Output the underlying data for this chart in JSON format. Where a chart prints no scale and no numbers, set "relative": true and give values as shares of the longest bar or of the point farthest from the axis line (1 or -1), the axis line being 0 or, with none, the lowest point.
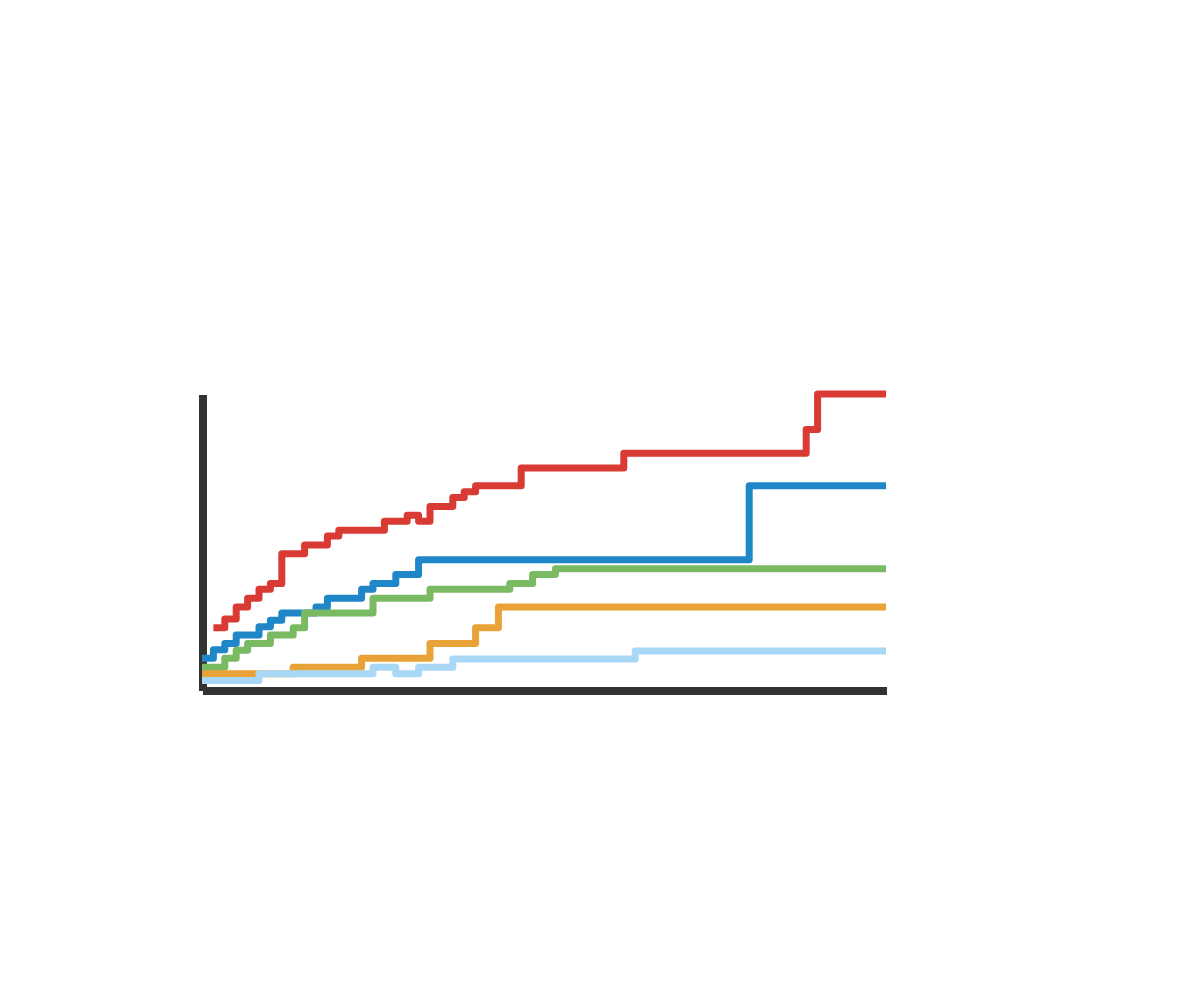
{
  "chart_data": {
    "type": "step",
    "relative": true,
    "line_style": "solid",
    "categories": [
      null,
      null,
      null,
      null,
      null,
      null,
      null,
      null,
      null,
      null,
      null,
      null,
      null,
      null,
      null,
      null,
      null,
      null,
      null,
      null,
      null,
      null,
      null,
      null,
      null,
      null,
      null,
      null,
      null,
      null,
      null,
      null,
      null,
      null,
      null,
      null,
      null,
      null,
      null,
      null,
      null,
      null,
      null,
      null,
      null,
      null,
      null,
      null,
      null,
      null,
      null,
      null,
      null,
      null,
      null,
      null,
      null,
      null,
      null,
      null,
      null
    ],
    "series": [
      {
        "color": "#d93a33",
        "values": [
          null,
          0.21,
          0.24,
          0.28,
          0.31,
          0.34,
          0.36,
          0.46,
          0.46,
          0.49,
          0.49,
          0.52,
          0.54,
          0.54,
          0.54,
          0.54,
          0.57,
          0.57,
          0.59,
          0.57,
          0.62,
          0.62,
          0.65,
          0.67,
          0.69,
          0.69,
          0.69,
          0.69,
          0.75,
          0.75,
          0.75,
          0.75,
          0.75,
          0.75,
          0.75,
          0.75,
          0.75,
          0.8,
          0.8,
          0.8,
          0.8,
          0.8,
          0.8,
          0.8,
          0.8,
          0.8,
          0.8,
          0.8,
          0.8,
          0.8,
          0.8,
          0.8,
          0.8,
          0.88,
          1,
          1,
          1,
          1,
          1,
          1,
          1
        ]
      },
      {
        "color": "#1f86c8",
        "values": [
          0.107,
          0.136,
          0.157,
          0.186,
          0.186,
          0.214,
          0.236,
          0.26,
          0.26,
          0.26,
          0.28,
          0.31,
          0.31,
          0.31,
          0.34,
          0.36,
          0.36,
          0.39,
          0.39,
          0.44,
          0.44,
          0.44,
          0.44,
          0.44,
          0.44,
          0.44,
          0.44,
          0.44,
          0.44,
          0.44,
          0.44,
          0.44,
          0.44,
          0.44,
          0.44,
          0.44,
          0.44,
          0.44,
          0.44,
          0.44,
          0.44,
          0.44,
          0.44,
          0.44,
          0.44,
          0.44,
          0.44,
          0.44,
          0.69,
          0.69,
          0.69,
          0.69,
          0.69,
          0.69,
          0.69,
          0.69,
          0.69,
          0.69,
          0.69,
          0.69,
          0.69
        ]
      },
      {
        "color": "#7aba63",
        "values": [
          0.077,
          0.077,
          0.107,
          0.134,
          0.157,
          0.157,
          0.186,
          0.186,
          0.21,
          0.26,
          0.26,
          0.26,
          0.26,
          0.26,
          0.26,
          0.31,
          0.31,
          0.31,
          0.31,
          0.31,
          0.34,
          0.34,
          0.34,
          0.34,
          0.34,
          0.34,
          0.34,
          0.36,
          0.36,
          0.39,
          0.39,
          0.41,
          0.41,
          0.41,
          0.41,
          0.41,
          0.41,
          0.41,
          0.41,
          0.41,
          0.41,
          0.41,
          0.41,
          0.41,
          0.41,
          0.41,
          0.41,
          0.41,
          0.41,
          0.41,
          0.41,
          0.41,
          0.41,
          0.41,
          0.41,
          0.41,
          0.41,
          0.41,
          0.41,
          0.41,
          0.41
        ]
      },
      {
        "color": "#e8a238",
        "values": [
          0.055,
          0.055,
          0.055,
          0.055,
          0.055,
          0.055,
          0.055,
          0.055,
          0.077,
          0.077,
          0.077,
          0.077,
          0.077,
          0.077,
          0.107,
          0.107,
          0.107,
          0.107,
          0.107,
          0.107,
          0.157,
          0.157,
          0.157,
          0.157,
          0.21,
          0.21,
          0.28,
          0.28,
          0.28,
          0.28,
          0.28,
          0.28,
          0.28,
          0.28,
          0.28,
          0.28,
          0.28,
          0.28,
          0.28,
          0.28,
          0.28,
          0.28,
          0.28,
          0.28,
          0.28,
          0.28,
          0.28,
          0.28,
          0.28,
          0.28,
          0.28,
          0.28,
          0.28,
          0.28,
          0.28,
          0.28,
          0.28,
          0.28,
          0.28,
          0.28,
          0.28
        ]
      },
      {
        "color": "#a8d8f5",
        "values": [
          0.032,
          0.032,
          0.032,
          0.032,
          0.032,
          0.055,
          0.055,
          0.055,
          0.055,
          0.055,
          0.055,
          0.055,
          0.055,
          0.055,
          0.055,
          0.077,
          0.077,
          0.055,
          0.055,
          0.077,
          0.077,
          0.077,
          0.105,
          0.105,
          0.105,
          0.105,
          0.105,
          0.105,
          0.105,
          0.105,
          0.105,
          0.105,
          0.105,
          0.105,
          0.105,
          0.105,
          0.105,
          0.105,
          0.132,
          0.132,
          0.132,
          0.132,
          0.132,
          0.132,
          0.132,
          0.132,
          0.132,
          0.132,
          0.132,
          0.132,
          0.132,
          0.132,
          0.132,
          0.132,
          0.132,
          0.132,
          0.132,
          0.132,
          0.132,
          0.132,
          0.132
        ]
      }
    ]
  }
}
